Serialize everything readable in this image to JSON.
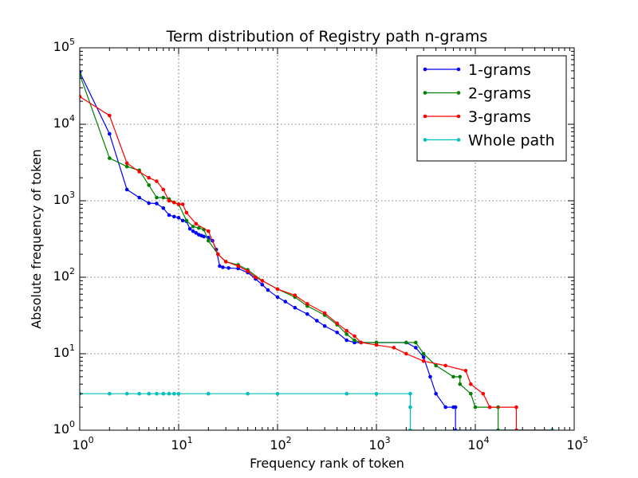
{
  "chart_data": {
    "type": "line",
    "title": "Term distribution of Registry path n-grams",
    "xlabel": "Frequency rank of token",
    "ylabel": "Absolute frequency of token",
    "xscale": "log",
    "yscale": "log",
    "xlim": [
      1,
      100000
    ],
    "ylim": [
      1,
      100000
    ],
    "xticks": [
      {
        "base": "10",
        "exp": "0"
      },
      {
        "base": "10",
        "exp": "1"
      },
      {
        "base": "10",
        "exp": "2"
      },
      {
        "base": "10",
        "exp": "3"
      },
      {
        "base": "10",
        "exp": "4"
      },
      {
        "base": "10",
        "exp": "5"
      }
    ],
    "yticks": [
      {
        "base": "10",
        "exp": "0"
      },
      {
        "base": "10",
        "exp": "1"
      },
      {
        "base": "10",
        "exp": "2"
      },
      {
        "base": "10",
        "exp": "3"
      },
      {
        "base": "10",
        "exp": "4"
      },
      {
        "base": "10",
        "exp": "5"
      }
    ],
    "grid": true,
    "legend_position": "top-right",
    "series": [
      {
        "name": "1-grams",
        "color": "#0000ff",
        "points": [
          [
            1,
            48000
          ],
          [
            2,
            7500
          ],
          [
            3,
            1400
          ],
          [
            4,
            1100
          ],
          [
            5,
            930
          ],
          [
            6,
            920
          ],
          [
            7,
            800
          ],
          [
            8,
            650
          ],
          [
            9,
            620
          ],
          [
            10,
            600
          ],
          [
            11,
            550
          ],
          [
            12,
            540
          ],
          [
            13,
            430
          ],
          [
            14,
            400
          ],
          [
            15,
            380
          ],
          [
            16,
            360
          ],
          [
            17,
            350
          ],
          [
            18,
            340
          ],
          [
            20,
            330
          ],
          [
            22,
            300
          ],
          [
            24,
            230
          ],
          [
            26,
            140
          ],
          [
            28,
            135
          ],
          [
            32,
            132
          ],
          [
            40,
            130
          ],
          [
            50,
            115
          ],
          [
            60,
            95
          ],
          [
            70,
            80
          ],
          [
            80,
            68
          ],
          [
            100,
            55
          ],
          [
            120,
            48
          ],
          [
            150,
            40
          ],
          [
            200,
            33
          ],
          [
            250,
            27
          ],
          [
            300,
            23
          ],
          [
            400,
            19
          ],
          [
            500,
            15
          ],
          [
            600,
            14
          ],
          [
            1000,
            14
          ],
          [
            2000,
            14
          ],
          [
            2500,
            12
          ],
          [
            3000,
            9
          ],
          [
            3500,
            5
          ],
          [
            4000,
            3
          ],
          [
            5000,
            2
          ],
          [
            6000,
            2
          ],
          [
            6300,
            2
          ],
          [
            6300,
            1
          ],
          [
            60000,
            1
          ]
        ]
      },
      {
        "name": "2-grams",
        "color": "#008000",
        "points": [
          [
            1,
            45000
          ],
          [
            2,
            3600
          ],
          [
            3,
            2800
          ],
          [
            4,
            2500
          ],
          [
            5,
            1600
          ],
          [
            6,
            1100
          ],
          [
            7,
            1100
          ],
          [
            8,
            1050
          ],
          [
            9,
            950
          ],
          [
            10,
            900
          ],
          [
            12,
            550
          ],
          [
            14,
            460
          ],
          [
            16,
            440
          ],
          [
            18,
            420
          ],
          [
            20,
            300
          ],
          [
            25,
            200
          ],
          [
            30,
            160
          ],
          [
            40,
            145
          ],
          [
            50,
            125
          ],
          [
            70,
            90
          ],
          [
            100,
            70
          ],
          [
            150,
            55
          ],
          [
            200,
            42
          ],
          [
            300,
            32
          ],
          [
            400,
            24
          ],
          [
            500,
            18
          ],
          [
            600,
            15
          ],
          [
            700,
            14
          ],
          [
            1000,
            14
          ],
          [
            2000,
            14
          ],
          [
            2500,
            14
          ],
          [
            3000,
            10
          ],
          [
            4000,
            7
          ],
          [
            6000,
            5
          ],
          [
            7000,
            5
          ],
          [
            7000,
            4
          ],
          [
            9000,
            3
          ],
          [
            10000,
            2
          ],
          [
            17000,
            2
          ],
          [
            17000,
            1
          ],
          [
            60000,
            1
          ]
        ]
      },
      {
        "name": "3-grams",
        "color": "#ff0000",
        "points": [
          [
            1,
            23000
          ],
          [
            2,
            13000
          ],
          [
            3,
            3100
          ],
          [
            4,
            2400
          ],
          [
            5,
            2000
          ],
          [
            6,
            1800
          ],
          [
            7,
            1400
          ],
          [
            8,
            1000
          ],
          [
            9,
            950
          ],
          [
            10,
            900
          ],
          [
            11,
            900
          ],
          [
            12,
            700
          ],
          [
            15,
            500
          ],
          [
            20,
            400
          ],
          [
            25,
            200
          ],
          [
            30,
            160
          ],
          [
            40,
            140
          ],
          [
            50,
            120
          ],
          [
            60,
            100
          ],
          [
            70,
            90
          ],
          [
            100,
            70
          ],
          [
            150,
            58
          ],
          [
            200,
            45
          ],
          [
            300,
            34
          ],
          [
            400,
            25
          ],
          [
            500,
            20
          ],
          [
            600,
            17
          ],
          [
            700,
            14
          ],
          [
            1000,
            13
          ],
          [
            1500,
            12
          ],
          [
            2000,
            10
          ],
          [
            3000,
            8
          ],
          [
            5000,
            7
          ],
          [
            8000,
            6
          ],
          [
            9000,
            4
          ],
          [
            12000,
            3
          ],
          [
            14000,
            2
          ],
          [
            26000,
            2
          ],
          [
            26000,
            1
          ],
          [
            60000,
            1
          ]
        ]
      },
      {
        "name": "Whole path",
        "color": "#00bfbf",
        "points": [
          [
            1,
            3
          ],
          [
            2,
            3
          ],
          [
            3,
            3
          ],
          [
            4,
            3
          ],
          [
            5,
            3
          ],
          [
            6,
            3
          ],
          [
            7,
            3
          ],
          [
            8,
            3
          ],
          [
            9,
            3
          ],
          [
            10,
            3
          ],
          [
            20,
            3
          ],
          [
            50,
            3
          ],
          [
            100,
            3
          ],
          [
            500,
            3
          ],
          [
            1000,
            3
          ],
          [
            2200,
            3
          ],
          [
            2200,
            2
          ],
          [
            2200,
            1
          ],
          [
            60000,
            1
          ]
        ]
      }
    ]
  }
}
